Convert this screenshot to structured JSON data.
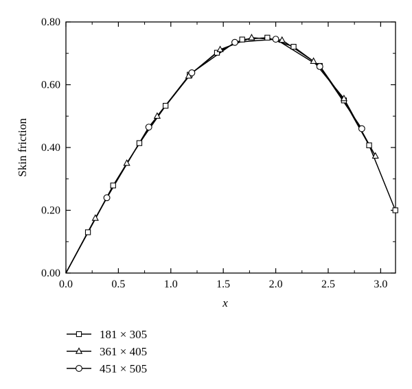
{
  "chart_data": {
    "type": "line",
    "title": "",
    "xlabel": "x",
    "ylabel": "Skin friction",
    "xlim": [
      0.0,
      3.14159
    ],
    "ylim": [
      0.0,
      0.8
    ],
    "x_ticks": [
      "0.0",
      "0.5",
      "1.0",
      "1.5",
      "2.0",
      "2.5",
      "3.0"
    ],
    "y_ticks": [
      "0.00",
      "0.20",
      "0.40",
      "0.60",
      "0.80"
    ],
    "grid": false,
    "legend_position": "bottom-left, below plot",
    "series": [
      {
        "name": "181 × 305",
        "marker": "square",
        "x": [
          0.21,
          0.45,
          0.7,
          0.95,
          1.18,
          1.44,
          1.68,
          1.92,
          2.17,
          2.42,
          2.65,
          2.89,
          3.14
        ],
        "y": [
          0.13,
          0.279,
          0.414,
          0.533,
          0.632,
          0.702,
          0.744,
          0.75,
          0.721,
          0.66,
          0.55,
          0.407,
          0.2
        ]
      },
      {
        "name": "361 × 405",
        "marker": "triangle",
        "x": [
          0.28,
          0.58,
          0.87,
          1.17,
          1.47,
          1.77,
          2.06,
          2.36,
          2.65,
          2.95
        ],
        "y": [
          0.175,
          0.35,
          0.5,
          0.628,
          0.712,
          0.75,
          0.742,
          0.675,
          0.556,
          0.373
        ]
      },
      {
        "name": "451 × 505",
        "marker": "circle",
        "x": [
          0.39,
          0.79,
          1.2,
          1.61,
          2.0,
          2.42,
          2.82
        ],
        "y": [
          0.24,
          0.465,
          0.638,
          0.735,
          0.745,
          0.658,
          0.46
        ]
      }
    ]
  }
}
